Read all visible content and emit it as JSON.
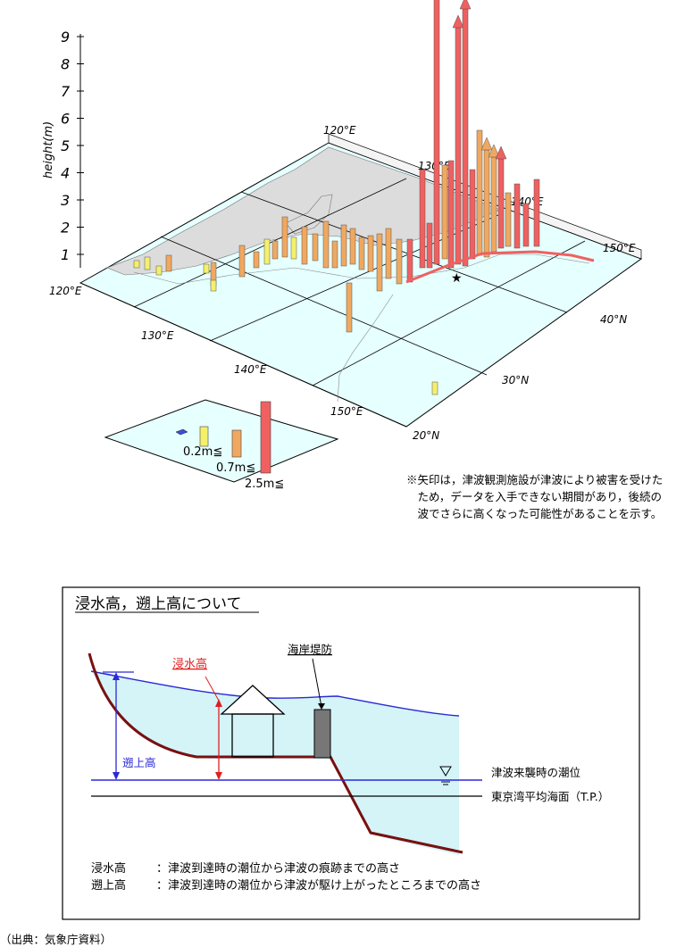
{
  "map_figure": {
    "axis_label": "height(m)",
    "height_ticks": [
      "1",
      "2",
      "3",
      "4",
      "5",
      "6",
      "7",
      "8",
      "9"
    ],
    "lon_labels_top": [
      "120°E",
      "130°E",
      "140°E",
      "150°E"
    ],
    "lon_labels_bottom": [
      "120°E",
      "130°E",
      "140°E",
      "150°E"
    ],
    "lat_labels": [
      "40°N",
      "30°N",
      "20°N"
    ],
    "legend": {
      "items": [
        {
          "label": "",
          "color": "#3b4fd8"
        },
        {
          "label": "0.2m≦",
          "color": "#f5f06a"
        },
        {
          "label": "0.7m≦",
          "color": "#f0a860"
        },
        {
          "label": "2.5m≦",
          "color": "#f06060"
        }
      ]
    },
    "colors": {
      "low": "#3b4fd8",
      "small": "#f5f06a",
      "medium": "#f0a860",
      "large": "#f06060",
      "sea": "#e6ffff",
      "land": "#e4e4e4"
    }
  },
  "note": {
    "lines": [
      "※矢印は，津波観測施設が津波により被害を受けた",
      "　ため，データを入手できない期間があり，後続の",
      "　波でさらに高くなった可能性があることを示す。"
    ]
  },
  "diagram": {
    "title": "浸水高，遡上高について",
    "label_inundation": "浸水高",
    "label_runup": "遡上高",
    "label_seawall": "海岸堤防",
    "label_tide": "津波来襲時の潮位",
    "label_tp": "東京湾平均海面（T.P.）",
    "defs": [
      {
        "term": "浸水高",
        "desc": "：津波到達時の潮位から津波の痕跡までの高さ"
      },
      {
        "term": "遡上高",
        "desc": "：津波到達時の潮位から津波が駆け上がったところまでの高さ"
      }
    ],
    "colors": {
      "water_line": "#2a2ad6",
      "ground": "#7a1010",
      "sea": "#d4f4f8",
      "arrow_red": "#e02020"
    }
  },
  "source": "（出典：気象庁資料）"
}
